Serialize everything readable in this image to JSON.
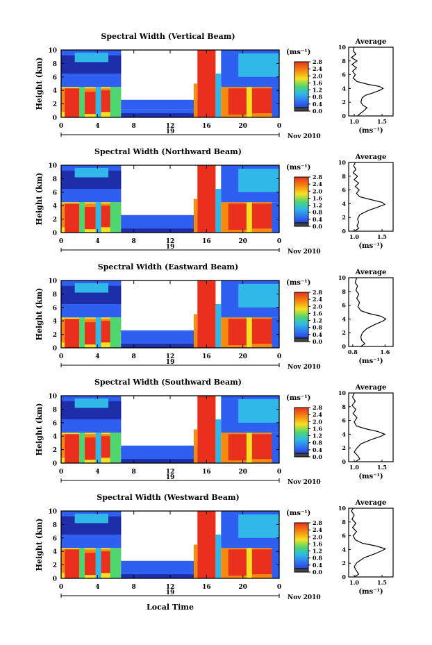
{
  "figure": {
    "xlabel": "Local Time",
    "colors": {
      "red": "#e8301c",
      "orange": "#f58a10",
      "yellow": "#f6e021",
      "green": "#4fd66f",
      "cyan": "#2fb8e8",
      "blue": "#2f5ff0",
      "navy": "#1d2ea8"
    }
  },
  "chart_data": [
    {
      "type": "heatmap",
      "title": "Spectral Width (Vertical Beam)",
      "ylabel": "Height (km)",
      "xticks": [
        "0",
        "4",
        "8",
        "12",
        "16",
        "20",
        "0"
      ],
      "day_label": "19",
      "month_label": "Nov 2010",
      "xlim": [
        0,
        24
      ],
      "ylim": [
        0,
        10
      ],
      "yticks": [
        "0",
        "2",
        "4",
        "6",
        "8",
        "10"
      ],
      "colorbar": {
        "unit": "(ms⁻¹)",
        "range": [
          0.0,
          2.8
        ],
        "ticks": [
          "2.8",
          "2.4",
          "2.0",
          "1.6",
          "1.2",
          "0.8",
          "0.4",
          "0.0"
        ]
      },
      "profile": {
        "title": "Average",
        "xlabel": "(ms⁻¹)",
        "xticks": [
          "1.0",
          "1.5"
        ],
        "xlim": [
          0.9,
          1.7
        ],
        "yticks": [
          "0",
          "2",
          "4",
          "6",
          "8",
          "10"
        ],
        "points": [
          [
            1.06,
            0
          ],
          [
            1.1,
            0.3
          ],
          [
            1.18,
            0.8
          ],
          [
            1.23,
            1.2
          ],
          [
            1.15,
            1.6
          ],
          [
            1.12,
            2.0
          ],
          [
            1.14,
            2.6
          ],
          [
            1.2,
            3.0
          ],
          [
            1.32,
            3.3
          ],
          [
            1.45,
            3.7
          ],
          [
            1.52,
            4.0
          ],
          [
            1.45,
            4.3
          ],
          [
            1.25,
            4.6
          ],
          [
            1.05,
            5.0
          ],
          [
            0.98,
            5.5
          ],
          [
            1.02,
            6.0
          ],
          [
            0.97,
            6.5
          ],
          [
            1.04,
            7.0
          ],
          [
            0.96,
            7.5
          ],
          [
            1.05,
            8.0
          ],
          [
            0.95,
            8.5
          ],
          [
            1.03,
            9.0
          ],
          [
            0.98,
            9.5
          ],
          [
            1.0,
            10
          ]
        ]
      }
    },
    {
      "type": "heatmap",
      "title": "Spectral Width (Northward Beam)",
      "ylabel": "Height (km)",
      "xticks": [
        "0",
        "4",
        "8",
        "12",
        "16",
        "20",
        "0"
      ],
      "day_label": "19",
      "month_label": "Nov 2010",
      "xlim": [
        0,
        24
      ],
      "ylim": [
        0,
        10
      ],
      "yticks": [
        "0",
        "2",
        "4",
        "6",
        "8",
        "10"
      ],
      "colorbar": {
        "unit": "(ms⁻¹)",
        "range": [
          0.0,
          2.8
        ],
        "ticks": [
          "2.8",
          "2.4",
          "2.0",
          "1.6",
          "1.2",
          "0.8",
          "0.4",
          "0.0"
        ]
      },
      "profile": {
        "title": "Average",
        "xlabel": "(ms⁻¹)",
        "xticks": [
          "1.0",
          "1.5"
        ],
        "xlim": [
          0.9,
          1.7
        ],
        "yticks": [
          "0",
          "2",
          "4",
          "6",
          "8",
          "10"
        ],
        "points": [
          [
            1.0,
            0
          ],
          [
            1.08,
            0.4
          ],
          [
            1.05,
            0.8
          ],
          [
            1.08,
            1.3
          ],
          [
            1.06,
            1.8
          ],
          [
            1.1,
            2.4
          ],
          [
            1.25,
            3.0
          ],
          [
            1.42,
            3.5
          ],
          [
            1.55,
            3.9
          ],
          [
            1.5,
            4.2
          ],
          [
            1.3,
            4.6
          ],
          [
            1.1,
            5.0
          ],
          [
            1.04,
            5.5
          ],
          [
            1.09,
            6.0
          ],
          [
            1.02,
            6.5
          ],
          [
            1.08,
            7.0
          ],
          [
            1.0,
            7.5
          ],
          [
            1.06,
            8.0
          ],
          [
            0.98,
            8.5
          ],
          [
            1.03,
            9.0
          ],
          [
            0.99,
            9.5
          ],
          [
            1.02,
            10
          ]
        ]
      }
    },
    {
      "type": "heatmap",
      "title": "Spectral Width (Eastward Beam)",
      "ylabel": "Height (km)",
      "xticks": [
        "0",
        "4",
        "8",
        "12",
        "16",
        "20",
        "0"
      ],
      "day_label": "19",
      "month_label": "Nov 2010",
      "xlim": [
        0,
        24
      ],
      "ylim": [
        0,
        10
      ],
      "yticks": [
        "0",
        "2",
        "4",
        "6",
        "8",
        "10"
      ],
      "colorbar": {
        "unit": "(ms⁻¹)",
        "range": [
          0.0,
          2.8
        ],
        "ticks": [
          "2.8",
          "2.4",
          "2.0",
          "1.6",
          "1.2",
          "0.8",
          "0.4",
          "0.0"
        ]
      },
      "profile": {
        "title": "Average",
        "xlabel": "(ms⁻¹)",
        "xticks": [
          "0.8",
          "1.6"
        ],
        "xlim": [
          0.7,
          1.8
        ],
        "yticks": [
          "0",
          "2",
          "4",
          "6",
          "8",
          "10"
        ],
        "points": [
          [
            1.0,
            0
          ],
          [
            1.1,
            0.4
          ],
          [
            1.02,
            0.9
          ],
          [
            1.0,
            1.4
          ],
          [
            1.04,
            2.0
          ],
          [
            1.15,
            2.6
          ],
          [
            1.35,
            3.2
          ],
          [
            1.55,
            3.7
          ],
          [
            1.62,
            4.0
          ],
          [
            1.5,
            4.4
          ],
          [
            1.2,
            4.8
          ],
          [
            1.0,
            5.2
          ],
          [
            0.93,
            5.8
          ],
          [
            0.97,
            6.4
          ],
          [
            0.9,
            7.0
          ],
          [
            0.95,
            7.6
          ],
          [
            0.88,
            8.2
          ],
          [
            0.92,
            8.8
          ],
          [
            0.86,
            9.3
          ],
          [
            0.9,
            10
          ]
        ]
      }
    },
    {
      "type": "heatmap",
      "title": "Spectral Width (Southward Beam)",
      "ylabel": "Height (km)",
      "xticks": [
        "0",
        "4",
        "8",
        "12",
        "16",
        "20",
        "0"
      ],
      "day_label": "19",
      "month_label": "Nov 2010",
      "xlim": [
        0,
        24
      ],
      "ylim": [
        0,
        10
      ],
      "yticks": [
        "0",
        "2",
        "4",
        "6",
        "8",
        "10"
      ],
      "colorbar": {
        "unit": "(ms⁻¹)",
        "range": [
          0.0,
          2.8
        ],
        "ticks": [
          "2.8",
          "2.4",
          "2.0",
          "1.6",
          "1.2",
          "0.8",
          "0.4",
          "0.0"
        ]
      },
      "profile": {
        "title": "Average",
        "xlabel": "(ms⁻¹)",
        "xticks": [
          "1.0",
          "1.5"
        ],
        "xlim": [
          0.9,
          1.7
        ],
        "yticks": [
          "0",
          "2",
          "4",
          "6",
          "8",
          "10"
        ],
        "points": [
          [
            1.02,
            0
          ],
          [
            1.1,
            0.4
          ],
          [
            1.06,
            0.9
          ],
          [
            1.0,
            1.4
          ],
          [
            1.05,
            2.0
          ],
          [
            1.12,
            2.6
          ],
          [
            1.3,
            3.2
          ],
          [
            1.48,
            3.7
          ],
          [
            1.55,
            4.0
          ],
          [
            1.42,
            4.4
          ],
          [
            1.2,
            4.8
          ],
          [
            1.04,
            5.2
          ],
          [
            1.0,
            5.8
          ],
          [
            1.05,
            6.4
          ],
          [
            0.98,
            7.0
          ],
          [
            1.03,
            7.6
          ],
          [
            0.96,
            8.2
          ],
          [
            1.02,
            8.8
          ],
          [
            0.97,
            9.4
          ],
          [
            1.0,
            10
          ]
        ]
      }
    },
    {
      "type": "heatmap",
      "title": "Spectral Width (Westward Beam)",
      "ylabel": "Height (km)",
      "xticks": [
        "0",
        "4",
        "8",
        "12",
        "16",
        "20",
        "0"
      ],
      "day_label": "19",
      "month_label": "Nov 2010",
      "xlim": [
        0,
        24
      ],
      "ylim": [
        0,
        10
      ],
      "yticks": [
        "0",
        "2",
        "4",
        "6",
        "8",
        "10"
      ],
      "colorbar": {
        "unit": "(ms⁻¹)",
        "range": [
          0.0,
          2.8
        ],
        "ticks": [
          "2.8",
          "2.4",
          "2.0",
          "1.6",
          "1.2",
          "0.8",
          "0.4",
          "0.0"
        ]
      },
      "profile": {
        "title": "Average",
        "xlabel": "(ms⁻¹)",
        "xticks": [
          "1.0",
          "1.5"
        ],
        "xlim": [
          0.9,
          1.7
        ],
        "yticks": [
          "0",
          "2",
          "4",
          "6",
          "8",
          "10"
        ],
        "points": [
          [
            1.0,
            0
          ],
          [
            1.08,
            0.4
          ],
          [
            1.04,
            0.9
          ],
          [
            1.0,
            1.5
          ],
          [
            1.05,
            2.1
          ],
          [
            1.18,
            2.8
          ],
          [
            1.38,
            3.4
          ],
          [
            1.52,
            3.9
          ],
          [
            1.56,
            4.1
          ],
          [
            1.4,
            4.5
          ],
          [
            1.15,
            4.9
          ],
          [
            1.02,
            5.4
          ],
          [
            0.98,
            6.0
          ],
          [
            1.04,
            6.6
          ],
          [
            0.97,
            7.2
          ],
          [
            1.03,
            7.8
          ],
          [
            0.96,
            8.4
          ],
          [
            1.0,
            9.0
          ],
          [
            0.95,
            9.6
          ],
          [
            0.98,
            10
          ]
        ]
      }
    }
  ]
}
